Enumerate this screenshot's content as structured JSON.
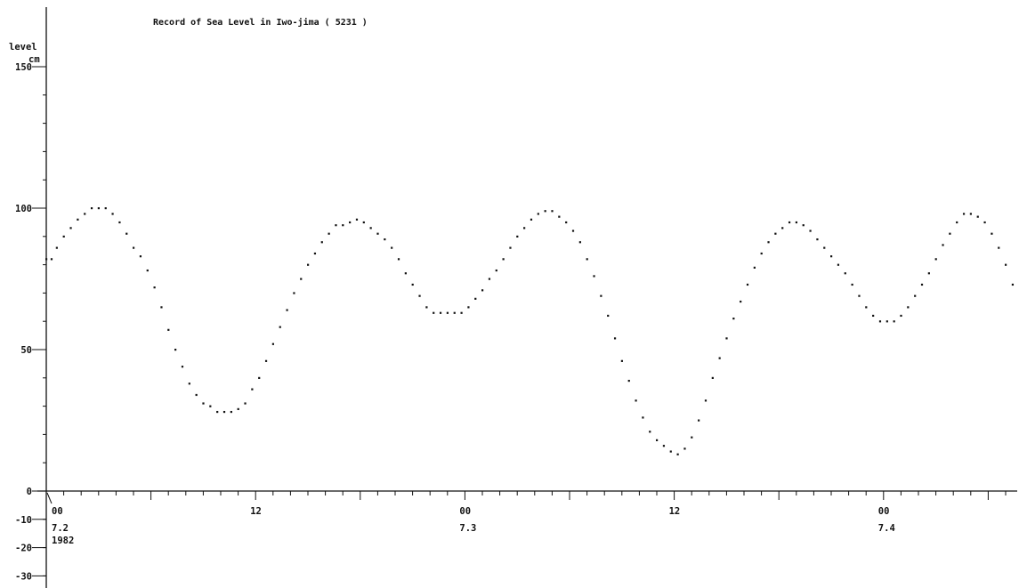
{
  "chart_data": {
    "type": "scatter",
    "title": "Record of Sea Level in Iwo-jima ( 5231 )",
    "ylabel": "level",
    "yunit": "cm",
    "ylim": [
      -30,
      160
    ],
    "yticks": [
      150,
      100,
      50,
      0,
      -10,
      -20,
      -30
    ],
    "xlabel": "",
    "xlim": [
      0,
      55
    ],
    "x_unit_note": "hours from 1982-07-02 00:00",
    "x_major_ticks": [
      {
        "x": 0,
        "label": "00",
        "date": "7.2",
        "year": "1982"
      },
      {
        "x": 12,
        "label": "12",
        "date": "",
        "year": ""
      },
      {
        "x": 24,
        "label": "00",
        "date": "7.3",
        "year": ""
      },
      {
        "x": 36,
        "label": "12",
        "date": "",
        "year": ""
      },
      {
        "x": 48,
        "label": "00",
        "date": "7.4",
        "year": ""
      }
    ],
    "grid": false,
    "series": [
      {
        "name": "",
        "color": "#111111",
        "points": [
          [
            0.0,
            82
          ],
          [
            0.3,
            82
          ],
          [
            0.6,
            86
          ],
          [
            1.0,
            90
          ],
          [
            1.4,
            93
          ],
          [
            1.8,
            96
          ],
          [
            2.2,
            98
          ],
          [
            2.6,
            100
          ],
          [
            3.0,
            100
          ],
          [
            3.4,
            100
          ],
          [
            3.8,
            98
          ],
          [
            4.2,
            95
          ],
          [
            4.6,
            91
          ],
          [
            5.0,
            86
          ],
          [
            5.4,
            83
          ],
          [
            5.8,
            78
          ],
          [
            6.2,
            72
          ],
          [
            6.6,
            65
          ],
          [
            7.0,
            57
          ],
          [
            7.4,
            50
          ],
          [
            7.8,
            44
          ],
          [
            8.2,
            38
          ],
          [
            8.6,
            34
          ],
          [
            9.0,
            31
          ],
          [
            9.4,
            30
          ],
          [
            9.8,
            28
          ],
          [
            10.2,
            28
          ],
          [
            10.6,
            28
          ],
          [
            11.0,
            29
          ],
          [
            11.4,
            31
          ],
          [
            11.8,
            36
          ],
          [
            12.2,
            40
          ],
          [
            12.6,
            46
          ],
          [
            13.0,
            52
          ],
          [
            13.4,
            58
          ],
          [
            13.8,
            64
          ],
          [
            14.2,
            70
          ],
          [
            14.6,
            75
          ],
          [
            15.0,
            80
          ],
          [
            15.4,
            84
          ],
          [
            15.8,
            88
          ],
          [
            16.2,
            91
          ],
          [
            16.6,
            94
          ],
          [
            17.0,
            94
          ],
          [
            17.4,
            95
          ],
          [
            17.8,
            96
          ],
          [
            18.2,
            95
          ],
          [
            18.6,
            93
          ],
          [
            19.0,
            91
          ],
          [
            19.4,
            89
          ],
          [
            19.8,
            86
          ],
          [
            20.2,
            82
          ],
          [
            20.6,
            77
          ],
          [
            21.0,
            73
          ],
          [
            21.4,
            69
          ],
          [
            21.8,
            65
          ],
          [
            22.2,
            63
          ],
          [
            22.6,
            63
          ],
          [
            23.0,
            63
          ],
          [
            23.4,
            63
          ],
          [
            23.8,
            63
          ],
          [
            24.2,
            65
          ],
          [
            24.6,
            68
          ],
          [
            25.0,
            71
          ],
          [
            25.4,
            75
          ],
          [
            25.8,
            78
          ],
          [
            26.2,
            82
          ],
          [
            26.6,
            86
          ],
          [
            27.0,
            90
          ],
          [
            27.4,
            93
          ],
          [
            27.8,
            96
          ],
          [
            28.2,
            98
          ],
          [
            28.6,
            99
          ],
          [
            29.0,
            99
          ],
          [
            29.4,
            97
          ],
          [
            29.8,
            95
          ],
          [
            30.2,
            92
          ],
          [
            30.6,
            88
          ],
          [
            31.0,
            82
          ],
          [
            31.4,
            76
          ],
          [
            31.8,
            69
          ],
          [
            32.2,
            62
          ],
          [
            32.6,
            54
          ],
          [
            33.0,
            46
          ],
          [
            33.4,
            39
          ],
          [
            33.8,
            32
          ],
          [
            34.2,
            26
          ],
          [
            34.6,
            21
          ],
          [
            35.0,
            18
          ],
          [
            35.4,
            16
          ],
          [
            35.8,
            14
          ],
          [
            36.2,
            13
          ],
          [
            36.6,
            15
          ],
          [
            37.0,
            19
          ],
          [
            37.4,
            25
          ],
          [
            37.8,
            32
          ],
          [
            38.2,
            40
          ],
          [
            38.6,
            47
          ],
          [
            39.0,
            54
          ],
          [
            39.4,
            61
          ],
          [
            39.8,
            67
          ],
          [
            40.2,
            73
          ],
          [
            40.6,
            79
          ],
          [
            41.0,
            84
          ],
          [
            41.4,
            88
          ],
          [
            41.8,
            91
          ],
          [
            42.2,
            93
          ],
          [
            42.6,
            95
          ],
          [
            43.0,
            95
          ],
          [
            43.4,
            94
          ],
          [
            43.8,
            92
          ],
          [
            44.2,
            89
          ],
          [
            44.6,
            86
          ],
          [
            45.0,
            83
          ],
          [
            45.4,
            80
          ],
          [
            45.8,
            77
          ],
          [
            46.2,
            73
          ],
          [
            46.6,
            69
          ],
          [
            47.0,
            65
          ],
          [
            47.4,
            62
          ],
          [
            47.8,
            60
          ],
          [
            48.2,
            60
          ],
          [
            48.6,
            60
          ],
          [
            49.0,
            62
          ],
          [
            49.4,
            65
          ],
          [
            49.8,
            69
          ],
          [
            50.2,
            73
          ],
          [
            50.6,
            77
          ],
          [
            51.0,
            82
          ],
          [
            51.4,
            87
          ],
          [
            51.8,
            91
          ],
          [
            52.2,
            95
          ],
          [
            52.6,
            98
          ],
          [
            53.0,
            98
          ],
          [
            53.4,
            97
          ],
          [
            53.8,
            95
          ],
          [
            54.2,
            91
          ],
          [
            54.6,
            86
          ],
          [
            55.0,
            80
          ],
          [
            55.4,
            73
          ]
        ]
      }
    ]
  }
}
